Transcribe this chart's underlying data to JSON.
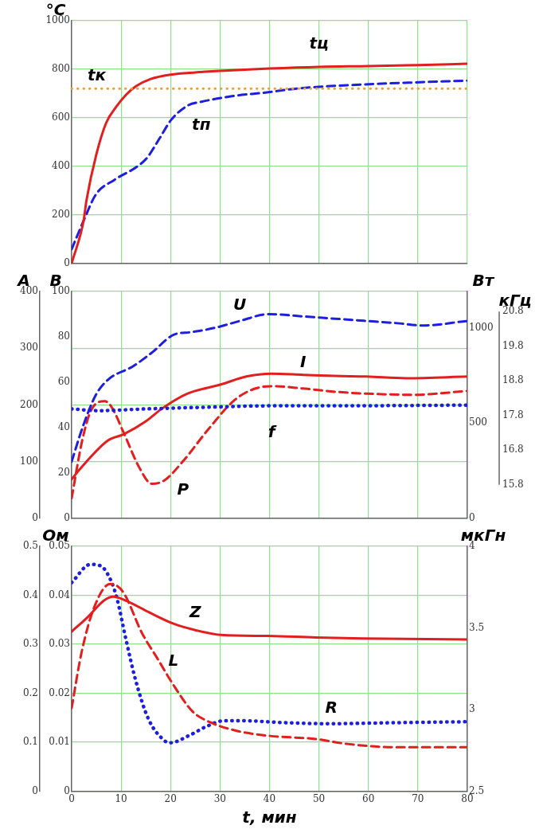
{
  "chart_data": [
    {
      "type": "line",
      "ylabel": "°C",
      "xlim": [
        0,
        80
      ],
      "xticks": [
        0,
        10,
        20,
        30,
        40,
        50,
        60,
        70,
        80
      ],
      "ylim": [
        0,
        1000
      ],
      "yticks": [
        0,
        200,
        400,
        600,
        800,
        1000
      ],
      "grid": true,
      "legend": false,
      "tick_labels": "y",
      "series": [
        {
          "name": "tц",
          "color": "#e31e1e",
          "line_style": "solid",
          "x": [
            0,
            2.4,
            3,
            5,
            7,
            9,
            11,
            13,
            16,
            20,
            25,
            30,
            40,
            50,
            60,
            70,
            80
          ],
          "values": [
            0,
            175,
            260,
            450,
            580,
            645,
            695,
            730,
            760,
            778,
            787,
            793,
            803,
            810,
            813,
            817,
            823
          ]
        },
        {
          "name": "tп",
          "color": "#1e1ee0",
          "line_style": "dashed",
          "x": [
            0,
            2.4,
            4.9,
            8.7,
            13.3,
            15.2,
            17.8,
            20.1,
            23.6,
            26.2,
            32.7,
            39.2,
            44.4,
            49.5,
            58.6,
            68.3,
            80
          ],
          "values": [
            59,
            175,
            284,
            345,
            400,
            434,
            516,
            591,
            652,
            666,
            690,
            704,
            718,
            727,
            737,
            745,
            753
          ]
        }
      ],
      "ref_lines": [
        {
          "axis": "y",
          "value": 720,
          "label": "tк",
          "color": "#f39c33",
          "line_style": "dotted"
        }
      ]
    },
    {
      "type": "line",
      "ylabel": "В",
      "y2label": "А",
      "y3label": "Вт",
      "xlim": [
        0,
        80
      ],
      "xticks": [
        0,
        10,
        20,
        30,
        40,
        50,
        60,
        70,
        80
      ],
      "ylim": [
        0,
        100
      ],
      "yticks": [
        0,
        20,
        40,
        60,
        80,
        100
      ],
      "y2lim": [
        0,
        400
      ],
      "y2ticks": [
        0,
        100,
        200,
        300,
        400
      ],
      "y3lim": [
        0,
        1190
      ],
      "y3ticks": [
        0,
        500,
        1000
      ],
      "grid": true,
      "legend": false,
      "tick_labels": "y",
      "series": [
        {
          "name": "U",
          "color": "#1e1ee0",
          "line_style": "dashed",
          "axis": "y",
          "x": [
            0,
            2.2,
            4.8,
            7.3,
            12.4,
            16.2,
            20.7,
            23.9,
            29,
            34,
            39.8,
            46.8,
            53.2,
            59.6,
            65.9,
            71,
            80
          ],
          "values": [
            25,
            40,
            54,
            61,
            67,
            73,
            81,
            82,
            84,
            87,
            90,
            89,
            88,
            87,
            86,
            85,
            87
          ]
        },
        {
          "name": "I",
          "color": "#e31e1e",
          "line_style": "solid",
          "axis": "y2",
          "x": [
            0,
            2.2,
            7.3,
            10.5,
            15,
            18.2,
            23.2,
            30.2,
            35.3,
            40.4,
            46.8,
            53.2,
            59.6,
            67.8,
            80
          ],
          "values": [
            69,
            92,
            137,
            148,
            171,
            193,
            219,
            236,
            250,
            255,
            253,
            251,
            250,
            247,
            250
          ]
        },
        {
          "name": "P",
          "color": "#e31e1e",
          "line_style": "dashed",
          "axis": "y3",
          "x": [
            0,
            2.2,
            4.1,
            6.7,
            8,
            10.5,
            13.7,
            16.2,
            18.7,
            22.5,
            27.6,
            32.8,
            36.6,
            40.4,
            46.8,
            53.2,
            59.6,
            69.1,
            80
          ],
          "values": [
            106,
            416,
            575,
            614,
            587,
            450,
            265,
            181,
            198,
            299,
            466,
            617,
            676,
            693,
            681,
            664,
            654,
            648,
            668
          ]
        }
      ]
    },
    {
      "type": "line",
      "ylabel": "кГц",
      "xlim": [
        0,
        80
      ],
      "ylim": [
        15.8,
        20.8
      ],
      "yticks": [
        15.8,
        16.8,
        17.8,
        18.8,
        19.8,
        20.8
      ],
      "legend": false,
      "tick_labels": "y",
      "series": [
        {
          "name": "f",
          "color": "#1e1ee0",
          "line_style": "dotted",
          "x": [
            0,
            5.4,
            15,
            27.6,
            40.4,
            53,
            80
          ],
          "values": [
            17.99,
            17.94,
            17.99,
            18.04,
            18.08,
            18.08,
            18.1
          ]
        }
      ]
    },
    {
      "type": "line",
      "ylabel": "Ом",
      "y3label": "мкГн",
      "xlabel": "t, мин",
      "xlim": [
        0,
        80
      ],
      "xticks": [
        0,
        10,
        20,
        30,
        40,
        50,
        60,
        70,
        80
      ],
      "ylim": [
        0,
        0.05
      ],
      "yticks": [
        0,
        0.01,
        0.02,
        0.03,
        0.04,
        0.05
      ],
      "y2lim": [
        0,
        0.5
      ],
      "y2ticks": [
        0,
        0.1,
        0.2,
        0.3,
        0.4,
        0.5
      ],
      "y3lim": [
        2.5,
        4
      ],
      "y3ticks": [
        2.5,
        3,
        3.5,
        4
      ],
      "grid": true,
      "legend": false,
      "series": [
        {
          "name": "Z",
          "color": "#e31e1e",
          "line_style": "solid",
          "axis": "y2",
          "x": [
            0,
            3.3,
            6.5,
            8.4,
            11,
            15.5,
            20.6,
            25,
            30.2,
            39.7,
            49.3,
            58.9,
            80
          ],
          "values": [
            0.326,
            0.356,
            0.389,
            0.397,
            0.389,
            0.366,
            0.342,
            0.329,
            0.319,
            0.317,
            0.314,
            0.312,
            0.31
          ]
        },
        {
          "name": "L",
          "color": "#e31e1e",
          "line_style": "dashed",
          "axis": "y3",
          "x": [
            0,
            2,
            4.6,
            7.8,
            10.4,
            14.2,
            17.4,
            20.6,
            24.4,
            28.2,
            33.4,
            39.7,
            49.3,
            55.7,
            65.3,
            80
          ],
          "values": [
            3.01,
            3.35,
            3.63,
            3.77,
            3.72,
            3.47,
            3.31,
            3.15,
            2.99,
            2.92,
            2.87,
            2.84,
            2.82,
            2.79,
            2.77,
            2.77
          ]
        },
        {
          "name": "R",
          "color": "#1e1ee0",
          "line_style": "dotted",
          "axis": "y",
          "x": [
            0,
            3.8,
            5.9,
            7.8,
            9.1,
            11,
            12.9,
            15.5,
            18.7,
            19.9,
            23.8,
            27,
            30.8,
            34.6,
            42.9,
            52.5,
            65.3,
            80
          ],
          "values": [
            0.0426,
            0.0463,
            0.046,
            0.0433,
            0.0396,
            0.0309,
            0.0228,
            0.0148,
            0.0104,
            0.0099,
            0.0114,
            0.0131,
            0.0144,
            0.0144,
            0.014,
            0.0138,
            0.014,
            0.0142
          ]
        }
      ]
    }
  ]
}
